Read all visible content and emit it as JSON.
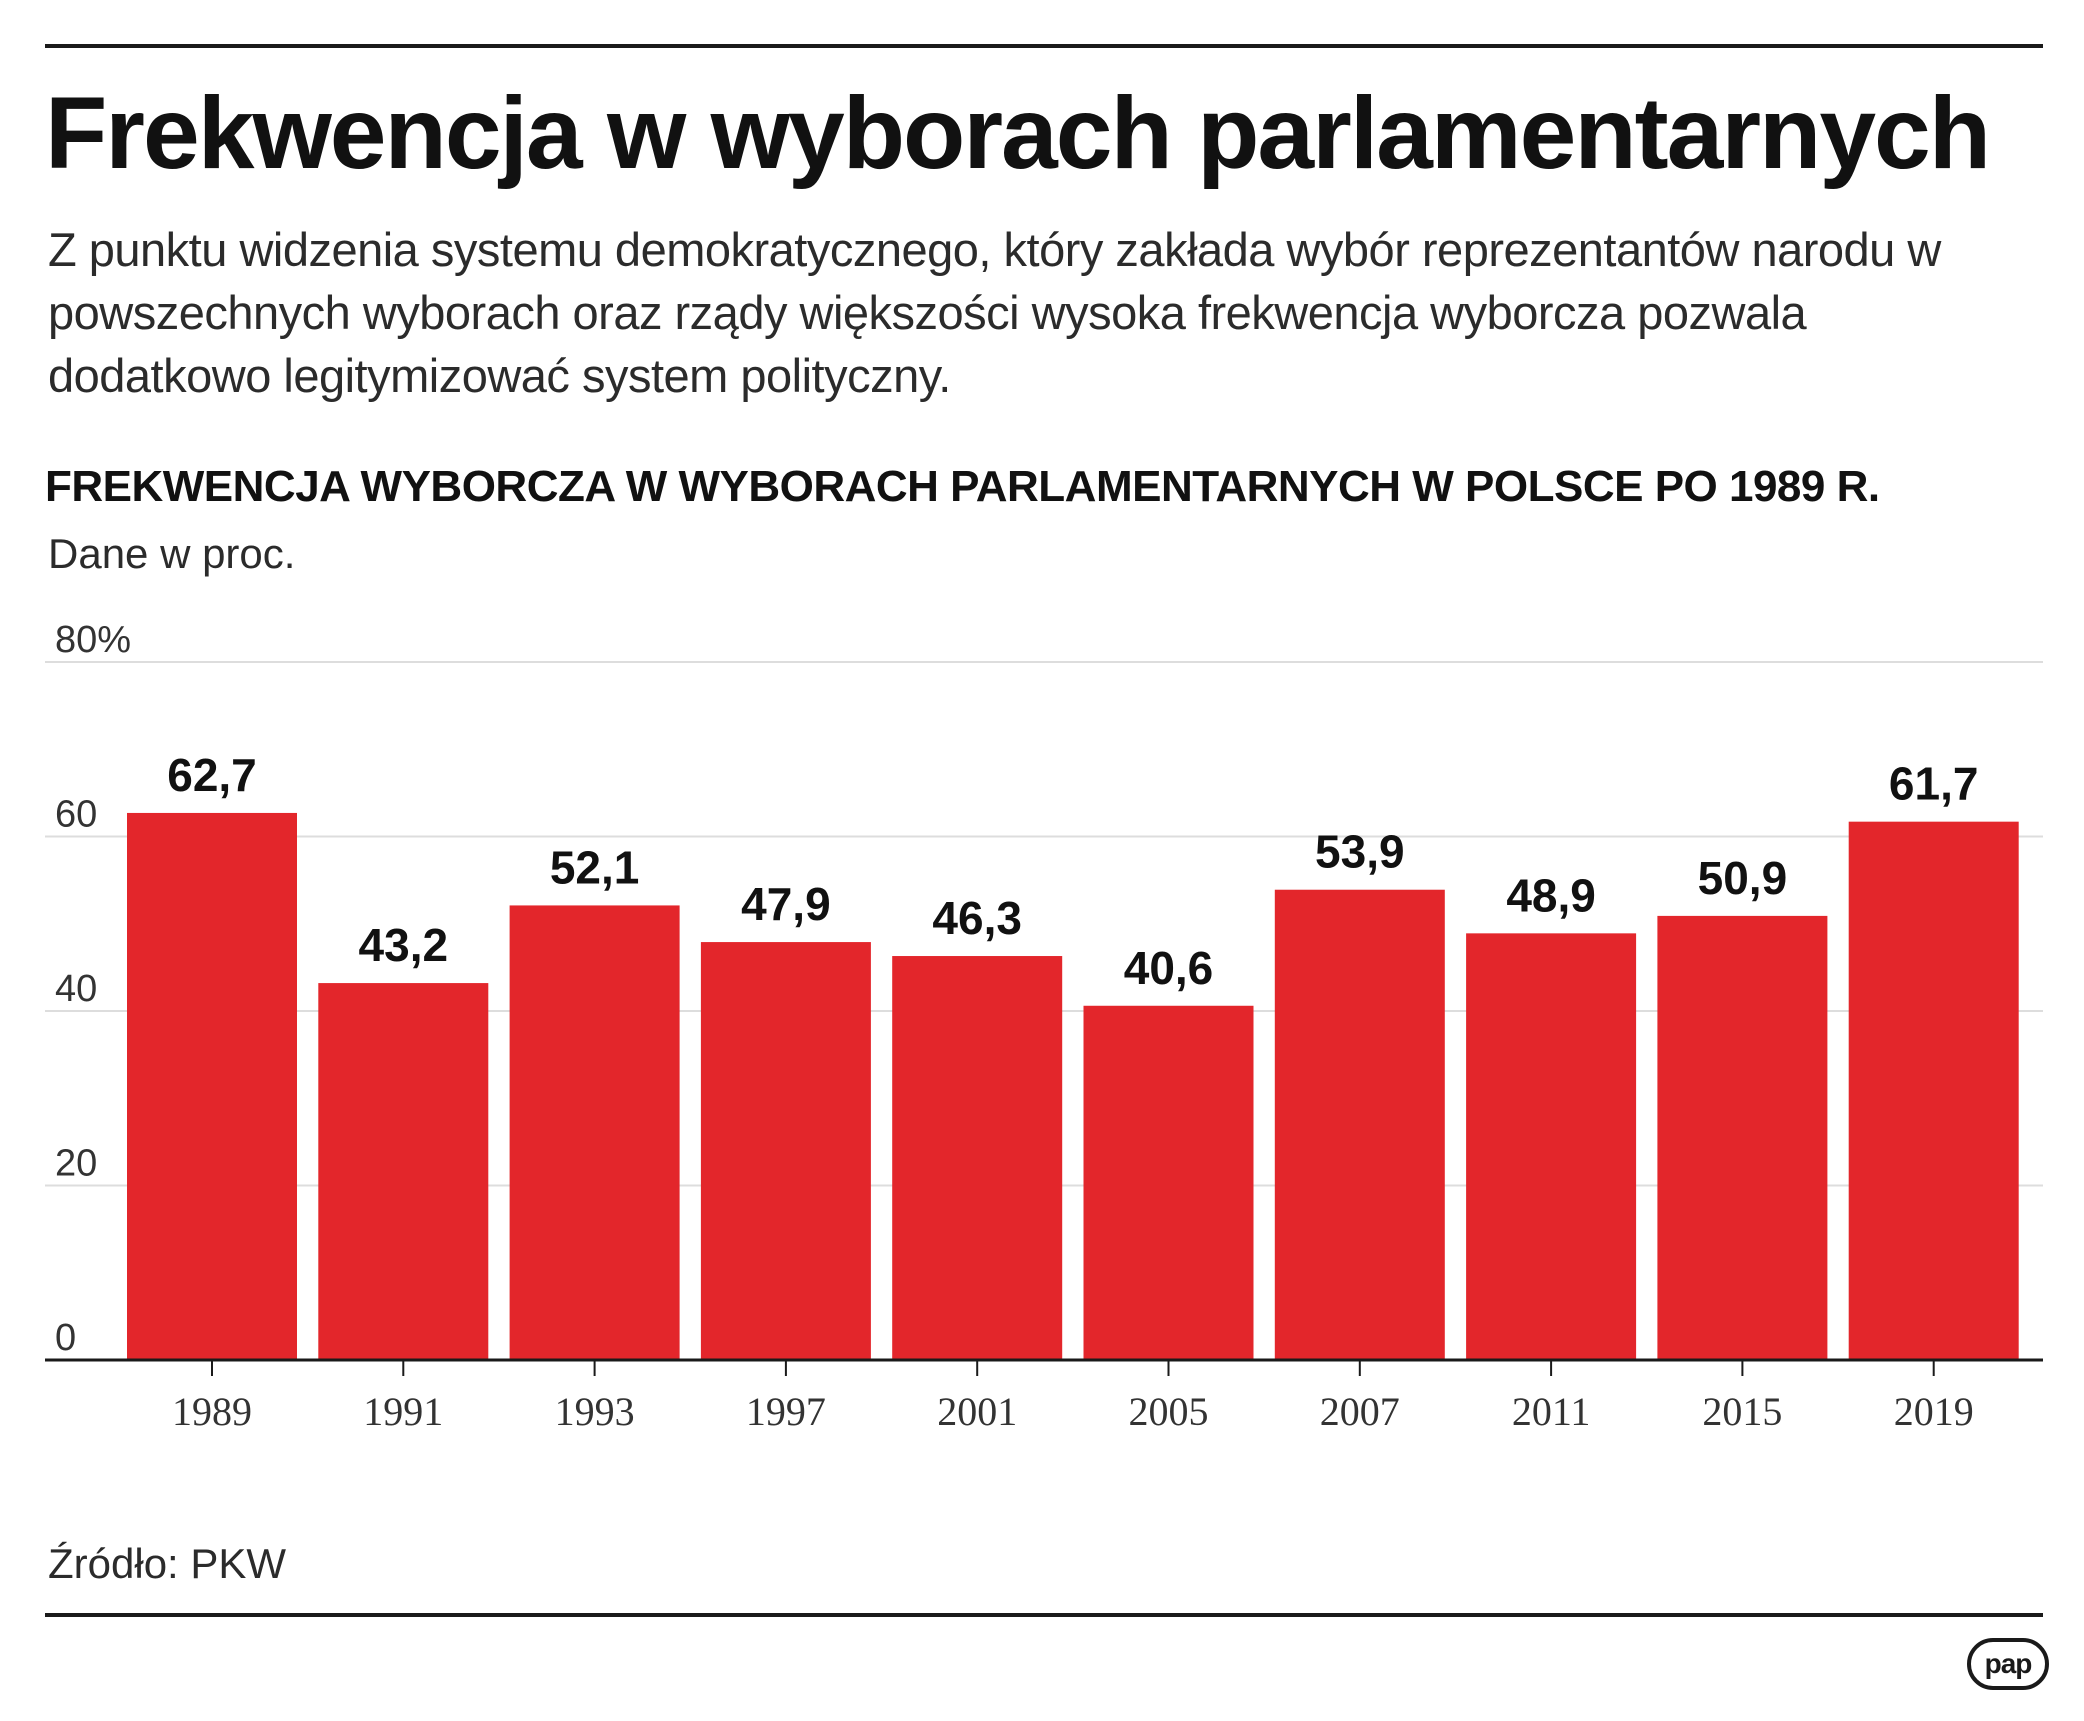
{
  "header": {
    "title": "Frekwencja w wyborach parlamentarnych",
    "intro": "Z punktu widzenia systemu demokratycznego, który zakłada wybór reprezentantów narodu w powszechnych wyborach oraz rządy większości wysoka frekwencja wyborcza pozwala dodatkowo legitymizować system polityczny."
  },
  "footer": {
    "source": "Źródło: PKW",
    "logo_text": "pap"
  },
  "chart_data": {
    "type": "bar",
    "title": "FREKWENCJA WYBORCZA W WYBORACH PARLAMENTARNYCH W POLSCE PO 1989 R.",
    "subtitle": "Dane w proc.",
    "categories": [
      "1989",
      "1991",
      "1993",
      "1997",
      "2001",
      "2005",
      "2007",
      "2011",
      "2015",
      "2019"
    ],
    "values": [
      62.7,
      43.2,
      52.1,
      47.9,
      46.3,
      40.6,
      53.9,
      48.9,
      50.9,
      61.7
    ],
    "value_labels": [
      "62,7",
      "43,2",
      "52,1",
      "47,9",
      "46,3",
      "40,6",
      "53,9",
      "48,9",
      "50,9",
      "61,7"
    ],
    "yticks": [
      0,
      20,
      40,
      60,
      80
    ],
    "ytick_labels": [
      "0",
      "20",
      "40",
      "60",
      "80%"
    ],
    "ylim": [
      0,
      80
    ],
    "xlabel": "",
    "ylabel": "",
    "grid": true,
    "legend": "none",
    "bar_color": "#e3262b",
    "grid_color": "#dddddd",
    "axis_color": "#1a1a1a"
  }
}
